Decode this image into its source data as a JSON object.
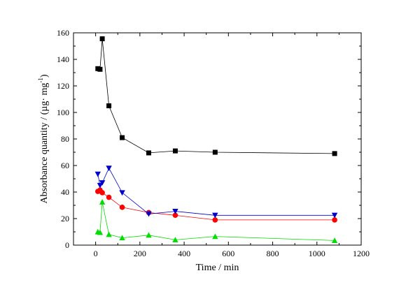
{
  "chart_data": {
    "type": "line",
    "title": "",
    "xlabel": "Time / min",
    "ylabel_parts": [
      "Absorbance quantity / (µg· mg",
      "-1",
      ")"
    ],
    "xlim": [
      -100,
      1200
    ],
    "ylim": [
      0,
      160
    ],
    "xticks": [
      0,
      200,
      400,
      600,
      800,
      1000,
      1200
    ],
    "yticks": [
      0,
      20,
      40,
      60,
      80,
      100,
      120,
      140,
      160
    ],
    "legend": "none",
    "grid": false,
    "series": [
      {
        "marker": "square",
        "color": "#000000",
        "x": [
          10,
          20,
          30,
          60,
          120,
          240,
          360,
          540,
          1080
        ],
        "y": [
          133,
          132.5,
          155.5,
          105,
          81,
          69.5,
          71,
          70,
          69
        ]
      },
      {
        "marker": "circle",
        "color": "#ff0000",
        "x": [
          10,
          20,
          30,
          60,
          120,
          240,
          360,
          540,
          1080
        ],
        "y": [
          40.5,
          41.5,
          39.5,
          36,
          28.5,
          24.5,
          22.5,
          19,
          19
        ]
      },
      {
        "marker": "triangle-down",
        "color": "#0000cc",
        "x": [
          10,
          20,
          30,
          60,
          120,
          240,
          360,
          540,
          1080
        ],
        "y": [
          53.5,
          45,
          47,
          58,
          39.5,
          23.5,
          25.5,
          22.5,
          22.5
        ]
      },
      {
        "marker": "triangle-up",
        "color": "#00dd00",
        "x": [
          10,
          20,
          30,
          60,
          120,
          240,
          360,
          540,
          1080
        ],
        "y": [
          10,
          9.5,
          32.5,
          8,
          5.5,
          7.5,
          4,
          6.5,
          3.5
        ]
      }
    ]
  }
}
